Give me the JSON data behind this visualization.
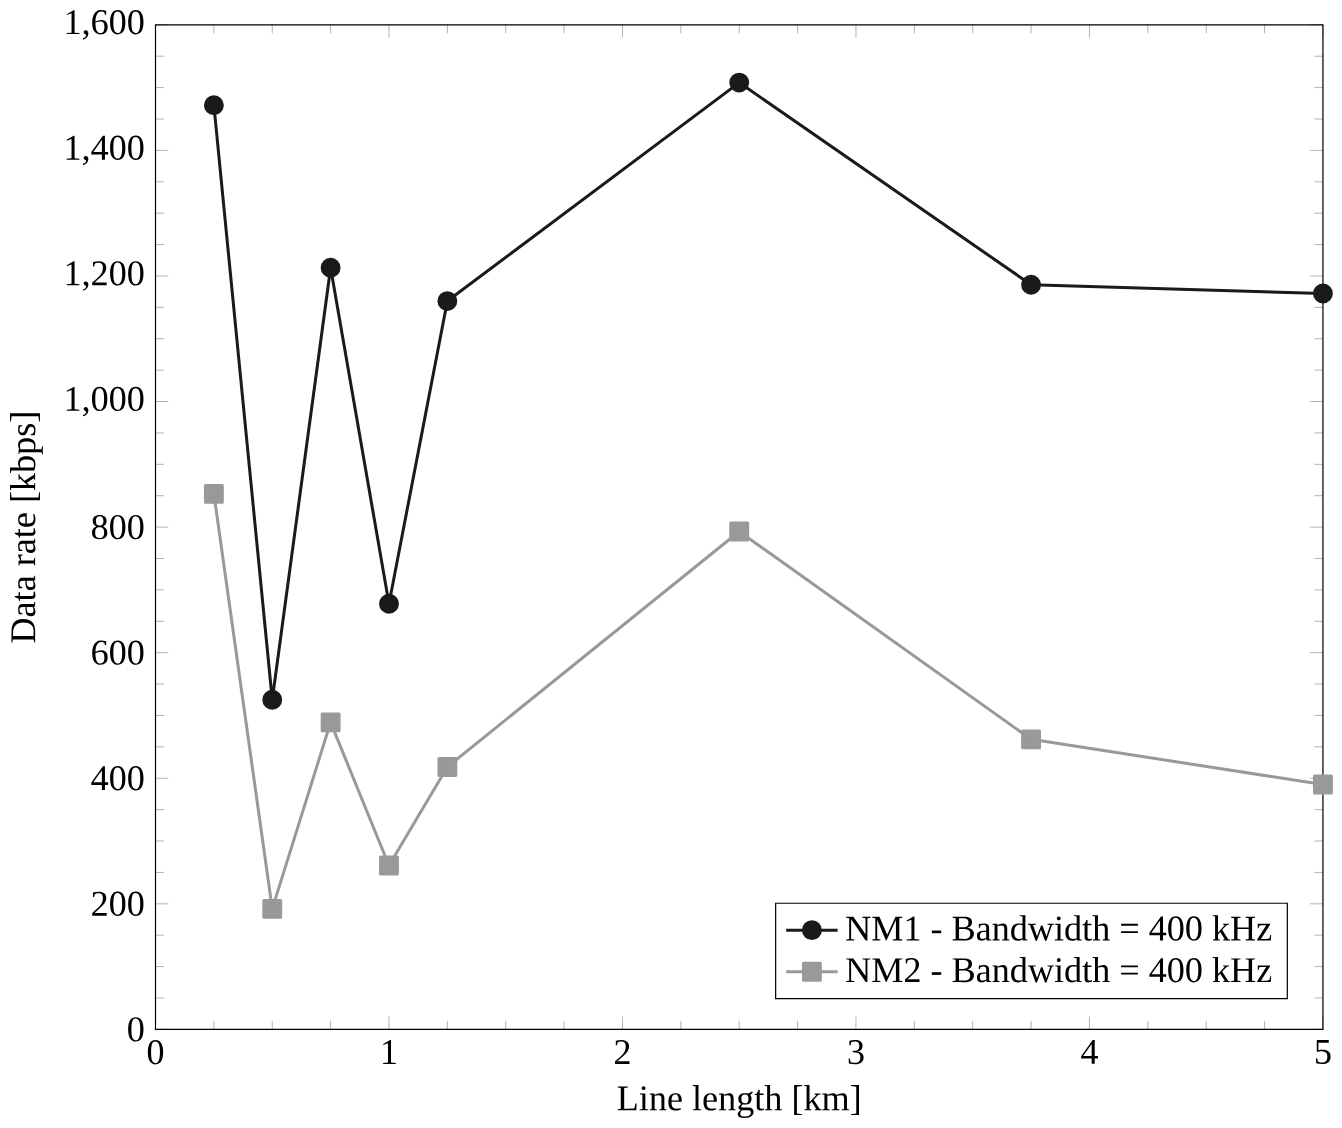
{
  "chart_data": {
    "type": "line",
    "xlabel": "Line length [km]",
    "ylabel": "Data rate [kbps]",
    "x": [
      0.25,
      0.5,
      0.75,
      1,
      1.25,
      2.5,
      3.75,
      5
    ],
    "series": [
      {
        "name": "NM1 - Bandwidth = 400 kHz",
        "color": "#1a1a1a",
        "marker": "circle",
        "values": [
          1472,
          525,
          1213,
          678,
          1160,
          1508,
          1186,
          1172
        ]
      },
      {
        "name": "NM2 - Bandwidth = 400 kHz",
        "color": "#999999",
        "marker": "square",
        "values": [
          853,
          192,
          489,
          261,
          418,
          793,
          462,
          390
        ]
      }
    ],
    "xlim": [
      0,
      5
    ],
    "xticks": [
      0,
      1,
      2,
      3,
      4,
      5
    ],
    "ylim": [
      0,
      1600
    ],
    "yticks": [
      0,
      200,
      400,
      600,
      800,
      {
        "value": 1000,
        "label": "1,000"
      },
      {
        "value": 1200,
        "label": "1,200"
      },
      {
        "value": 1400,
        "label": "1,400"
      },
      {
        "value": 1600,
        "label": "1,600"
      }
    ],
    "grid": false,
    "legend": "bottom right",
    "line_style": "solid"
  }
}
